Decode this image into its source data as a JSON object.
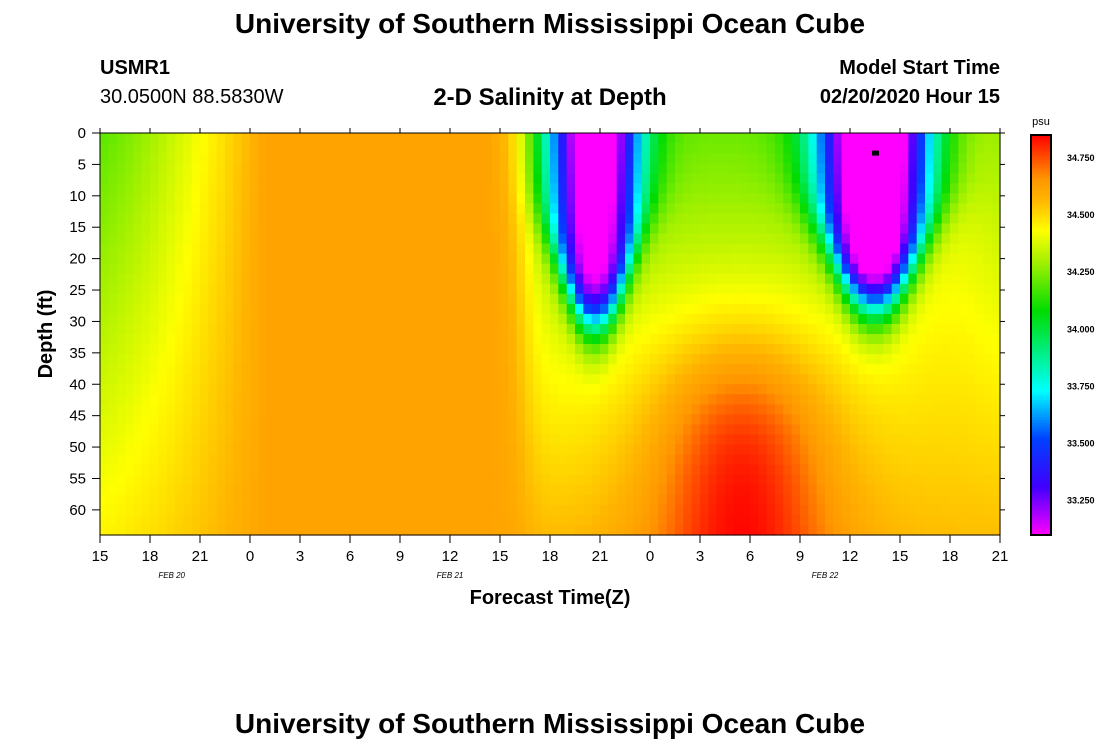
{
  "header": {
    "title": "University of Southern Mississippi Ocean Cube",
    "station_id": "USMR1",
    "station_coords": "30.0500N 88.5830W",
    "chart_title": "2-D Salinity at Depth",
    "model_start_label": "Model Start Time",
    "model_start_value": "02/20/2020 Hour 15"
  },
  "footer": {
    "title": "University of Southern Mississippi Ocean Cube"
  },
  "chart_data": {
    "type": "heatmap",
    "title": "2-D Salinity at Depth",
    "xlabel": "Forecast Time(Z)",
    "ylabel": "Depth (ft)",
    "x_unit": "hours since 02/20 00Z",
    "xlim": [
      15,
      69
    ],
    "x_ticks": [
      {
        "hour": 15,
        "label": "15"
      },
      {
        "hour": 18,
        "label": "18"
      },
      {
        "hour": 21,
        "label": "21"
      },
      {
        "hour": 24,
        "label": "0"
      },
      {
        "hour": 27,
        "label": "3"
      },
      {
        "hour": 30,
        "label": "6"
      },
      {
        "hour": 33,
        "label": "9"
      },
      {
        "hour": 36,
        "label": "12"
      },
      {
        "hour": 39,
        "label": "15"
      },
      {
        "hour": 42,
        "label": "18"
      },
      {
        "hour": 45,
        "label": "21"
      },
      {
        "hour": 48,
        "label": "0"
      },
      {
        "hour": 51,
        "label": "3"
      },
      {
        "hour": 54,
        "label": "6"
      },
      {
        "hour": 57,
        "label": "9"
      },
      {
        "hour": 60,
        "label": "12"
      },
      {
        "hour": 63,
        "label": "15"
      },
      {
        "hour": 66,
        "label": "18"
      },
      {
        "hour": 69,
        "label": "21"
      }
    ],
    "date_labels": [
      {
        "hour": 19.3,
        "label": "FEB 20"
      },
      {
        "hour": 36,
        "label": "FEB 21"
      },
      {
        "hour": 58.5,
        "label": "FEB 22"
      }
    ],
    "ylim": [
      0,
      64
    ],
    "y_ticks": [
      0,
      5,
      10,
      15,
      20,
      25,
      30,
      35,
      40,
      45,
      50,
      55,
      60
    ],
    "colorbar": {
      "unit": "psu",
      "range": [
        33.1,
        34.85
      ],
      "ticks": [
        "34.750",
        "34.500",
        "34.250",
        "34.000",
        "33.750",
        "33.500",
        "33.250"
      ],
      "tick_values": [
        34.75,
        34.5,
        34.25,
        34.0,
        33.75,
        33.5,
        33.25
      ]
    },
    "features": [
      {
        "name": "initial-low",
        "surface": 34.2,
        "deep": 34.45
      },
      {
        "name": "plateau",
        "hour_range": [
          25,
          39
        ],
        "value": 34.62
      },
      {
        "name": "fresh-pocket-1",
        "center_hour": 44.7,
        "min_value": 33.3,
        "depth_extent": 30
      },
      {
        "name": "fresh-pocket-2",
        "center_hour": 61.5,
        "min_value": 33.12,
        "depth_extent": 27
      },
      {
        "name": "deep-salty-core",
        "center_hour": 53.5,
        "depth": 64,
        "max_value": 34.85
      }
    ],
    "marker": {
      "hour": 61.5,
      "depth": 3.2
    }
  }
}
